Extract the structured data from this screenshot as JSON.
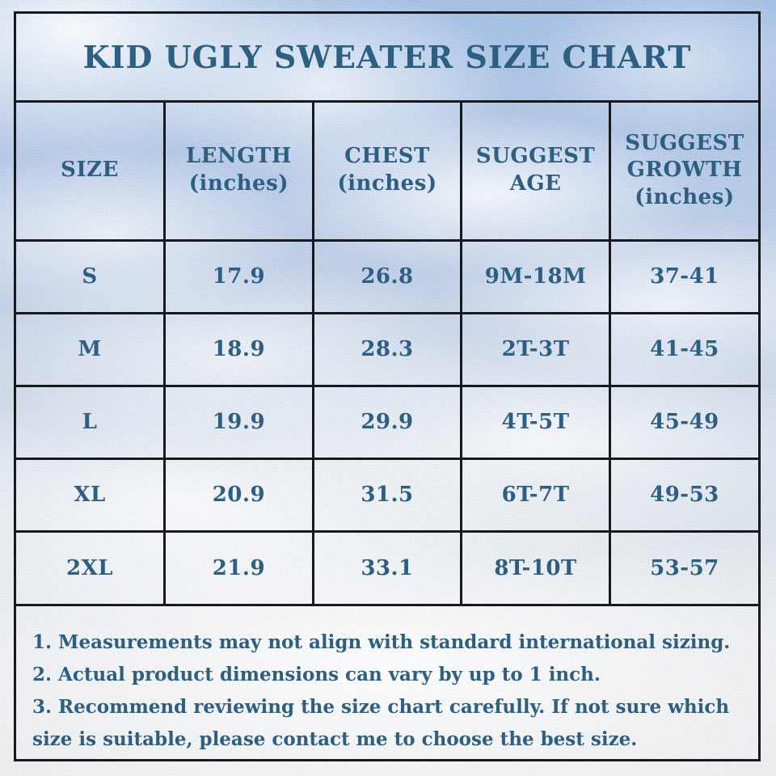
{
  "chart_data": {
    "type": "table",
    "title": "KID UGLY SWEATER SIZE CHART",
    "columns": [
      "SIZE",
      "LENGTH (inches)",
      "CHEST (inches)",
      "SUGGEST AGE",
      "SUGGEST GROWTH (inches)"
    ],
    "rows": [
      [
        "S",
        "17.9",
        "26.8",
        "9M-18M",
        "37-41"
      ],
      [
        "M",
        "18.9",
        "28.3",
        "2T-3T",
        "41-45"
      ],
      [
        "L",
        "19.9",
        "29.9",
        "4T-5T",
        "45-49"
      ],
      [
        "XL",
        "20.9",
        "31.5",
        "6T-7T",
        "49-53"
      ],
      [
        "2XL",
        "21.9",
        "33.1",
        "8T-10T",
        "53-57"
      ]
    ],
    "notes": [
      "1. Measurements may not align with standard international sizing.",
      "2. Actual product dimensions can vary by up to 1 inch.",
      "3. Recommend reviewing the size chart carefully. If not sure which size is suitable, please contact me to choose the best size."
    ],
    "layout_hints": {
      "grid": "on",
      "header_row": true,
      "notes_position": "below-table"
    }
  },
  "display": {
    "column_lines": [
      [
        "SIZE"
      ],
      [
        "LENGTH",
        "(inches)"
      ],
      [
        "CHEST",
        "(inches)"
      ],
      [
        "SUGGEST",
        "AGE"
      ],
      [
        "SUGGEST",
        "GROWTH",
        "(inches)"
      ]
    ]
  },
  "colors": {
    "text": "#2d5f82",
    "grid_line": "#17191c",
    "sky_top": "#a2bfe4",
    "sky_bottom": "#ecedee",
    "cloud": "#ffffff"
  }
}
